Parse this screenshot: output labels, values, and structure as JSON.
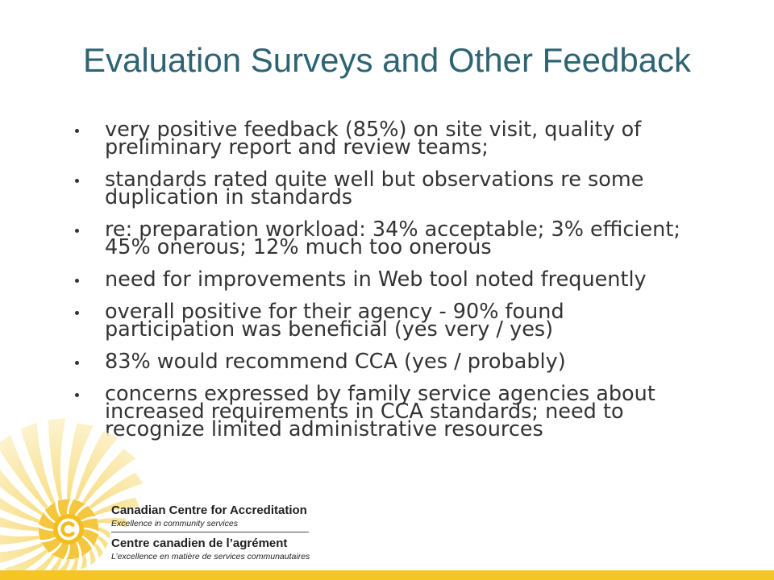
{
  "slide": {
    "title": "Evaluation Surveys and Other Feedback",
    "bullet_icon": "bullet-dot",
    "bullets": [
      {
        "lines": [
          "very positive feedback (85%) on site visit, quality of",
          "preliminary report and review teams;"
        ]
      },
      {
        "lines": [
          "standards rated quite well but observations re some",
          "duplication in standards"
        ]
      },
      {
        "lines": [
          "re: preparation workload: 34% acceptable; 3% efficient;",
          "45% onerous; 12% much too onerous"
        ]
      },
      {
        "lines": [
          "need for improvements in Web tool noted frequently"
        ]
      },
      {
        "lines": [
          "overall positive for their agency - 90% found",
          "participation was beneficial (yes very / yes)"
        ]
      },
      {
        "lines": [
          "83% would recommend CCA (yes / probably)"
        ]
      },
      {
        "lines": [
          "concerns expressed by family service agencies about",
          "increased requirements in CCA standards; need to",
          "recognize limited administrative resources"
        ]
      }
    ]
  },
  "logo": {
    "icon": "cca-sunburst-logo",
    "name_en": "Canadian Centre for Accreditation",
    "tagline_en": "Excellence in community services",
    "name_fr": "Centre canadien de l’agrément",
    "tagline_fr": "L’excellence en matière de services communautaires"
  },
  "colors": {
    "title": "#2d6473",
    "body_text": "#333333",
    "logo_text": "#1f1f1f",
    "accent_bar": "#f5c524",
    "logo_gold": "#f2bd1d",
    "ray_inner": "#f5d25a",
    "ray_outer": "#fcf2cc"
  }
}
